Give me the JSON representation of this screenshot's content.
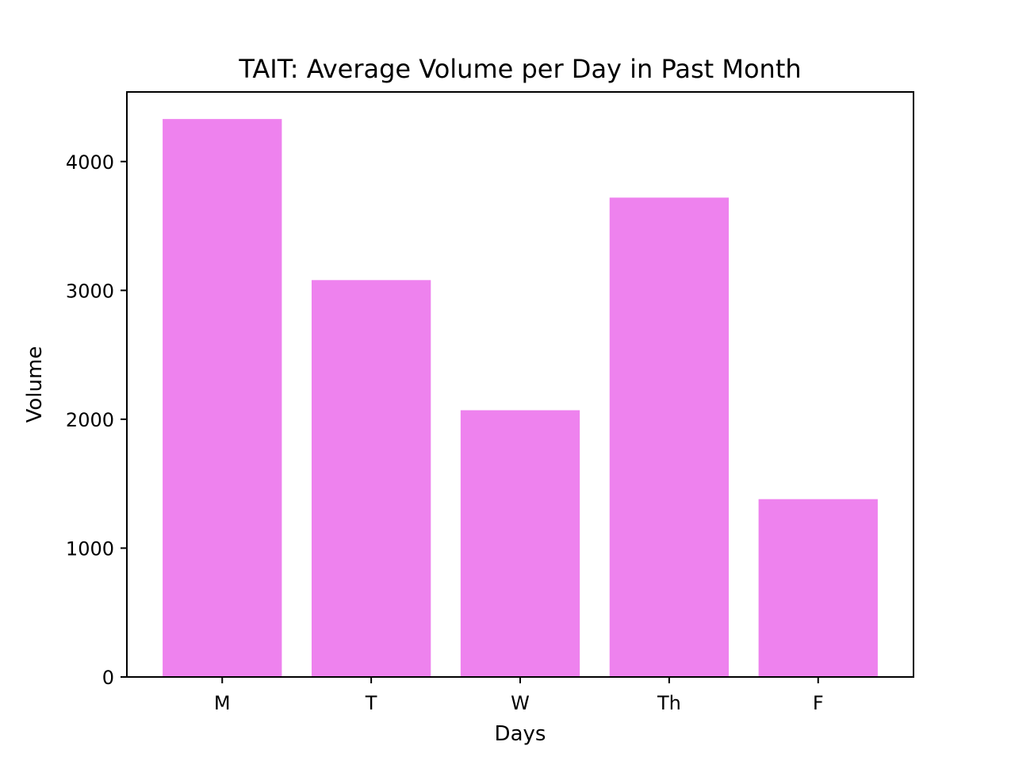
{
  "chart_data": {
    "type": "bar",
    "title": "TAIT: Average Volume per Day in Past Month",
    "xlabel": "Days",
    "ylabel": "Volume",
    "categories": [
      "M",
      "T",
      "W",
      "Th",
      "F"
    ],
    "values": [
      4330,
      3080,
      2070,
      3720,
      1380
    ],
    "ylim": [
      0,
      4540
    ],
    "yticks": [
      0,
      1000,
      2000,
      3000,
      4000
    ],
    "ytick_labels": [
      "0",
      "1000",
      "2000",
      "3000",
      "4000"
    ],
    "bar_color": "#ee82ee",
    "grid": false,
    "legend": false
  }
}
